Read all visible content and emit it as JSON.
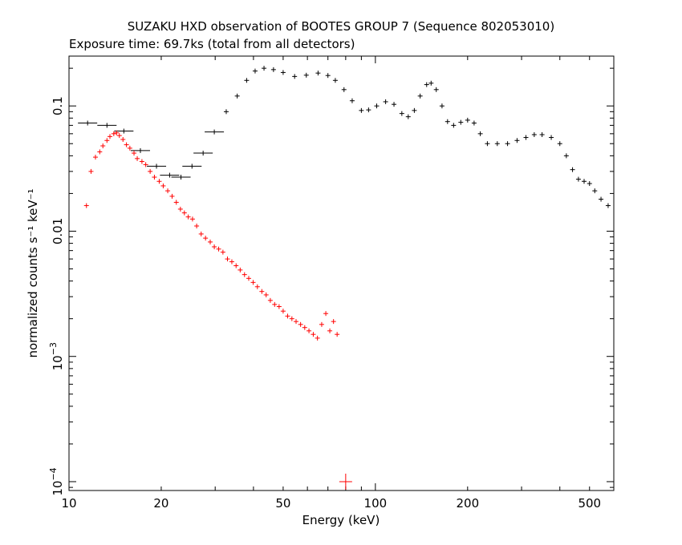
{
  "chart_data": {
    "type": "scatter",
    "title": "SUZAKU HXD observation of BOOTES GROUP 7 (Sequence 802053010)",
    "subtitle": "Exposure time: 69.7ks (total from all detectors)",
    "xlabel": "Energy (keV)",
    "ylabel": "normalized counts s⁻¹ keV⁻¹",
    "xscale": "log",
    "yscale": "log",
    "xlim": [
      10,
      600
    ],
    "ylim": [
      8.5e-05,
      0.25
    ],
    "grid": false,
    "x_ticks": [
      {
        "value": 10,
        "label": "10"
      },
      {
        "value": 20,
        "label": "20"
      },
      {
        "value": 50,
        "label": "50"
      },
      {
        "value": 100,
        "label": "100"
      },
      {
        "value": 200,
        "label": "200"
      },
      {
        "value": 500,
        "label": "500"
      }
    ],
    "y_ticks": [
      {
        "value": 0.1,
        "base": "0.1",
        "exp": ""
      },
      {
        "value": 0.01,
        "base": "0.01",
        "exp": ""
      },
      {
        "value": 0.001,
        "base": "10",
        "exp": "−3"
      },
      {
        "value": 0.0001,
        "base": "10",
        "exp": "−4"
      }
    ],
    "series": [
      {
        "color": "#000000",
        "points": [
          [
            11.5,
            0.073
          ],
          [
            13.3,
            0.07
          ],
          [
            15.1,
            0.063
          ],
          [
            17.1,
            0.044
          ],
          [
            19.3,
            0.033
          ],
          [
            21.3,
            0.028
          ],
          [
            23.2,
            0.027
          ],
          [
            25.2,
            0.033
          ],
          [
            27.4,
            0.042
          ],
          [
            29.8,
            0.062
          ],
          [
            32.6,
            0.09
          ],
          [
            35.4,
            0.12
          ],
          [
            38.0,
            0.16
          ],
          [
            40.5,
            0.19
          ],
          [
            43.3,
            0.2
          ],
          [
            46.5,
            0.195
          ],
          [
            50.0,
            0.185
          ],
          [
            54.5,
            0.172
          ],
          [
            59.5,
            0.176
          ],
          [
            65.0,
            0.183
          ],
          [
            70.0,
            0.175
          ],
          [
            74.0,
            0.16
          ],
          [
            79.0,
            0.135
          ],
          [
            84.0,
            0.11
          ],
          [
            90.0,
            0.092
          ],
          [
            95.0,
            0.093
          ],
          [
            101.0,
            0.1
          ],
          [
            108.0,
            0.108
          ],
          [
            115.0,
            0.103
          ],
          [
            122.0,
            0.087
          ],
          [
            128.0,
            0.082
          ],
          [
            134.0,
            0.092
          ],
          [
            140.0,
            0.12
          ],
          [
            147.0,
            0.148
          ],
          [
            152.0,
            0.152
          ],
          [
            158.0,
            0.135
          ],
          [
            165.0,
            0.1
          ],
          [
            172.0,
            0.075
          ],
          [
            180.0,
            0.07
          ],
          [
            190.0,
            0.074
          ],
          [
            200.0,
            0.077
          ],
          [
            210.0,
            0.073
          ],
          [
            220.0,
            0.06
          ],
          [
            232.0,
            0.05
          ],
          [
            250.0,
            0.05
          ],
          [
            270.0,
            0.05
          ],
          [
            290.0,
            0.053
          ],
          [
            310.0,
            0.056
          ],
          [
            330.0,
            0.059
          ],
          [
            350.0,
            0.059
          ],
          [
            375.0,
            0.056
          ],
          [
            400.0,
            0.05
          ],
          [
            420.0,
            0.04
          ],
          [
            440.0,
            0.031
          ],
          [
            460.0,
            0.026
          ],
          [
            480.0,
            0.025
          ],
          [
            500.0,
            0.024
          ],
          [
            520.0,
            0.021
          ],
          [
            545.0,
            0.018
          ],
          [
            575.0,
            0.016
          ]
        ]
      },
      {
        "color": "#ff0000",
        "points": [
          [
            11.4,
            0.016
          ],
          [
            11.8,
            0.03
          ],
          [
            12.2,
            0.039
          ],
          [
            12.6,
            0.043
          ],
          [
            12.9,
            0.048
          ],
          [
            13.3,
            0.053
          ],
          [
            13.6,
            0.057
          ],
          [
            14.0,
            0.06
          ],
          [
            14.3,
            0.061
          ],
          [
            14.6,
            0.058
          ],
          [
            15.0,
            0.054
          ],
          [
            15.4,
            0.049
          ],
          [
            15.8,
            0.046
          ],
          [
            16.3,
            0.042
          ],
          [
            16.7,
            0.038
          ],
          [
            17.3,
            0.036
          ],
          [
            17.8,
            0.034
          ],
          [
            18.4,
            0.03
          ],
          [
            19.0,
            0.027
          ],
          [
            19.7,
            0.025
          ],
          [
            20.3,
            0.023
          ],
          [
            21.0,
            0.021
          ],
          [
            21.7,
            0.019
          ],
          [
            22.4,
            0.017
          ],
          [
            23.1,
            0.015
          ],
          [
            23.8,
            0.014
          ],
          [
            24.5,
            0.013
          ],
          [
            25.3,
            0.0125
          ],
          [
            26.1,
            0.011
          ],
          [
            27.0,
            0.0095
          ],
          [
            27.9,
            0.0088
          ],
          [
            28.9,
            0.0082
          ],
          [
            29.8,
            0.0075
          ],
          [
            30.8,
            0.0072
          ],
          [
            31.8,
            0.0068
          ],
          [
            32.9,
            0.006
          ],
          [
            34.0,
            0.0057
          ],
          [
            35.1,
            0.0053
          ],
          [
            36.2,
            0.0049
          ],
          [
            37.4,
            0.0045
          ],
          [
            38.6,
            0.0042
          ],
          [
            39.9,
            0.0039
          ],
          [
            41.2,
            0.0036
          ],
          [
            42.6,
            0.0033
          ],
          [
            44.0,
            0.0031
          ],
          [
            45.4,
            0.0028
          ],
          [
            46.9,
            0.0026
          ],
          [
            48.5,
            0.0025
          ],
          [
            50.0,
            0.0023
          ],
          [
            51.7,
            0.0021
          ],
          [
            53.4,
            0.002
          ],
          [
            55.1,
            0.0019
          ],
          [
            57.0,
            0.0018
          ],
          [
            58.8,
            0.0017
          ],
          [
            60.7,
            0.0016
          ],
          [
            62.7,
            0.0015
          ],
          [
            64.7,
            0.0014
          ],
          [
            66.8,
            0.0018
          ],
          [
            68.9,
            0.0022
          ],
          [
            71.0,
            0.0016
          ],
          [
            73.0,
            0.0019
          ],
          [
            75.0,
            0.0015
          ],
          [
            80.0,
            0.0001
          ]
        ]
      }
    ]
  }
}
